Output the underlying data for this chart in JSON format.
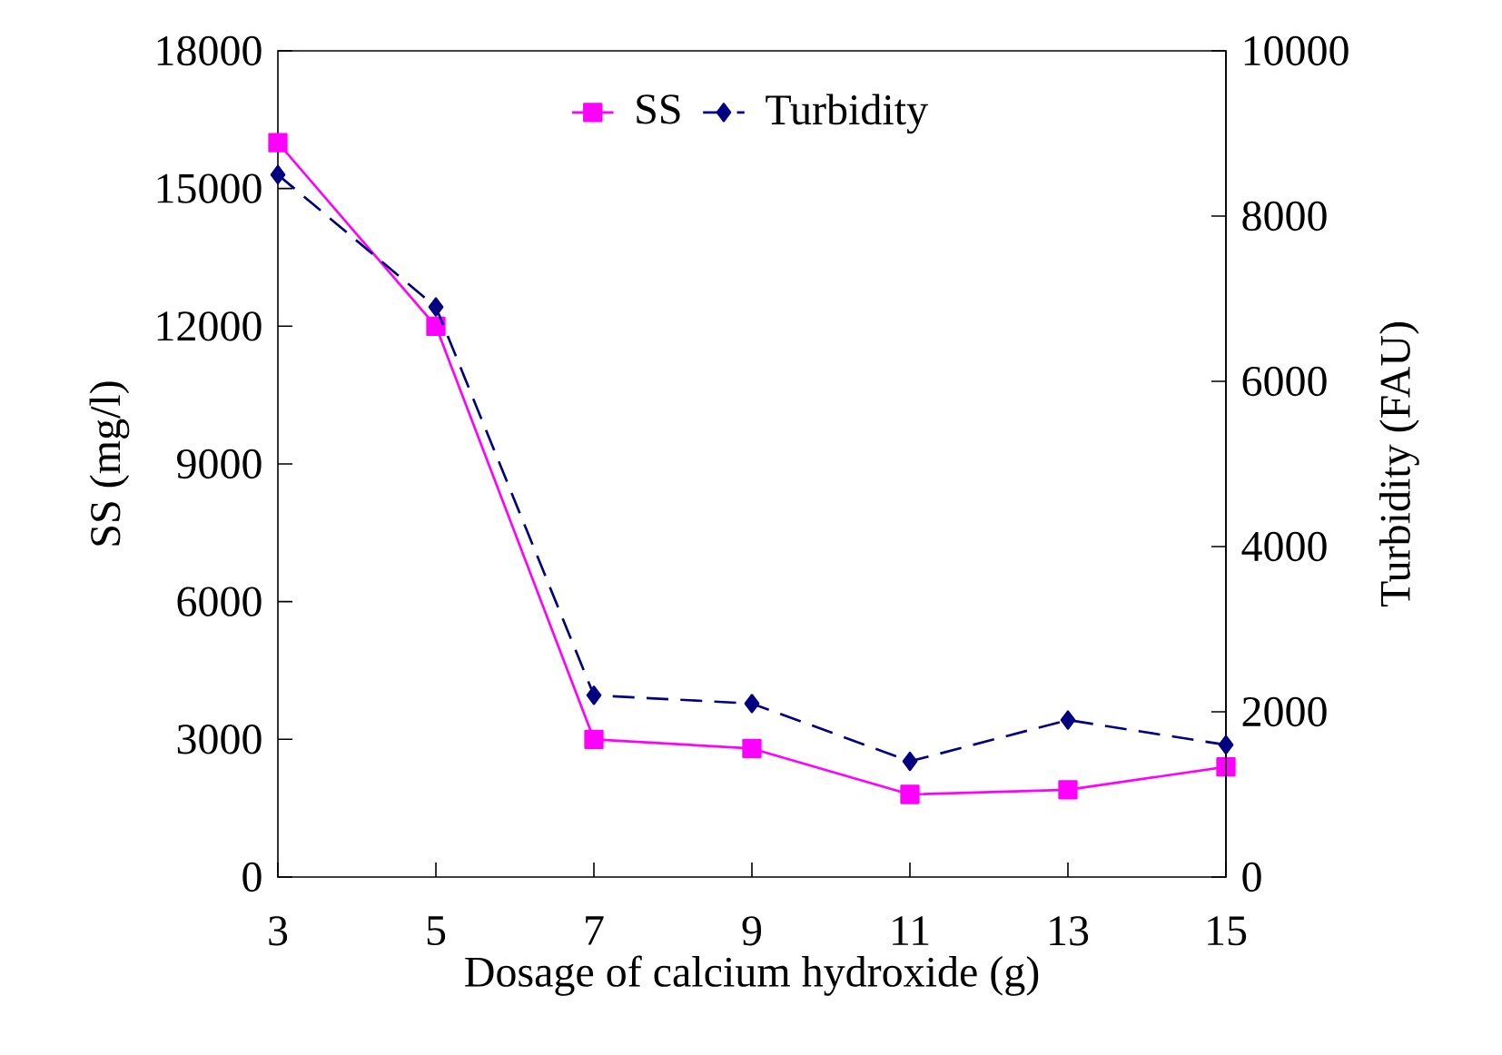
{
  "chart_data": {
    "type": "line",
    "xlabel": "Dosage of calcium hydroxide (g)",
    "ylabel": "SS (mg/l)",
    "y2label": "Turbidity (FAU)",
    "x": [
      3,
      5,
      7,
      9,
      11,
      13,
      15
    ],
    "xlim": [
      3,
      15
    ],
    "xticks": [
      3,
      5,
      7,
      9,
      11,
      13,
      15
    ],
    "ylim": [
      0,
      18000
    ],
    "yticks": [
      0,
      3000,
      6000,
      9000,
      12000,
      15000,
      18000
    ],
    "y2lim": [
      0,
      10000
    ],
    "y2ticks": [
      0,
      2000,
      4000,
      6000,
      8000,
      10000
    ],
    "grid": false,
    "legend": "top",
    "series": [
      {
        "name": "SS",
        "color": "#ff00ff",
        "marker": "square",
        "line_style": "solid",
        "values": [
          16000,
          12000,
          3000,
          2800,
          1800,
          1900,
          2400
        ]
      },
      {
        "name": "Turbidity",
        "color": "#000080",
        "marker": "diamond",
        "line_style": "dashed",
        "axis": "y2",
        "values": [
          8500,
          6900,
          2200,
          2100,
          1400,
          1900,
          1600
        ]
      }
    ]
  }
}
